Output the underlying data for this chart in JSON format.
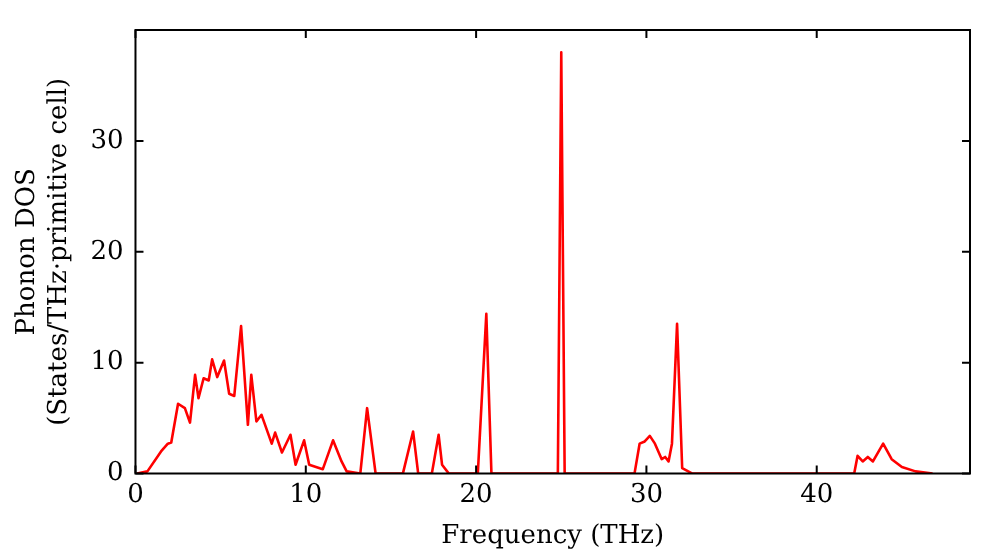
{
  "chart_data": {
    "type": "line",
    "xlabel": "Frequency (THz)",
    "ylabel": "Phonon DOS\n(States/THz·primitive cell)",
    "xlim": [
      0,
      49
    ],
    "ylim": [
      0,
      40
    ],
    "xticks": [
      0,
      10,
      20,
      30,
      40
    ],
    "yticks": [
      0,
      10,
      20,
      30
    ],
    "grid": false,
    "legend": false,
    "marker": "none",
    "line_style": "solid",
    "series": [
      {
        "color": "#ff0000",
        "x": [
          0.1,
          0.7,
          1.5,
          1.9,
          2.1,
          2.5,
          2.9,
          3.2,
          3.5,
          3.7,
          4.0,
          4.3,
          4.5,
          4.8,
          5.2,
          5.5,
          5.8,
          6.2,
          6.6,
          6.8,
          7.1,
          7.4,
          8.0,
          8.2,
          8.6,
          9.1,
          9.4,
          9.9,
          10.2,
          11.0,
          11.6,
          12.1,
          12.4,
          13.2,
          13.6,
          14.1,
          15.7,
          16.3,
          16.6,
          17.4,
          17.8,
          18.0,
          18.4,
          20.1,
          20.6,
          20.9,
          24.8,
          25.0,
          25.2,
          29.3,
          29.6,
          29.9,
          30.2,
          30.5,
          30.9,
          31.1,
          31.3,
          31.5,
          31.8,
          32.1,
          32.7,
          42.2,
          42.4,
          42.7,
          43.0,
          43.3,
          43.9,
          44.4,
          45.0,
          45.8,
          46.8
        ],
        "values": [
          0,
          0.2,
          2,
          2.7,
          2.8,
          6.3,
          5.9,
          4.6,
          8.9,
          6.8,
          8.6,
          8.4,
          10.3,
          8.7,
          10.2,
          7.2,
          7.0,
          13.3,
          4.4,
          8.9,
          4.7,
          5.3,
          2.7,
          3.7,
          1.9,
          3.5,
          0.8,
          3.0,
          0.8,
          0.4,
          3.0,
          1.1,
          0.2,
          0,
          5.9,
          0,
          0,
          3.8,
          0,
          0,
          3.5,
          0.8,
          0,
          0,
          14.4,
          0,
          0,
          38,
          0,
          0,
          2.7,
          2.9,
          3.4,
          2.7,
          1.3,
          1.5,
          1.1,
          2.7,
          13.5,
          0.5,
          0,
          0,
          1.6,
          1.1,
          1.5,
          1.1,
          2.7,
          1.3,
          0.6,
          0.2,
          0
        ]
      }
    ]
  }
}
